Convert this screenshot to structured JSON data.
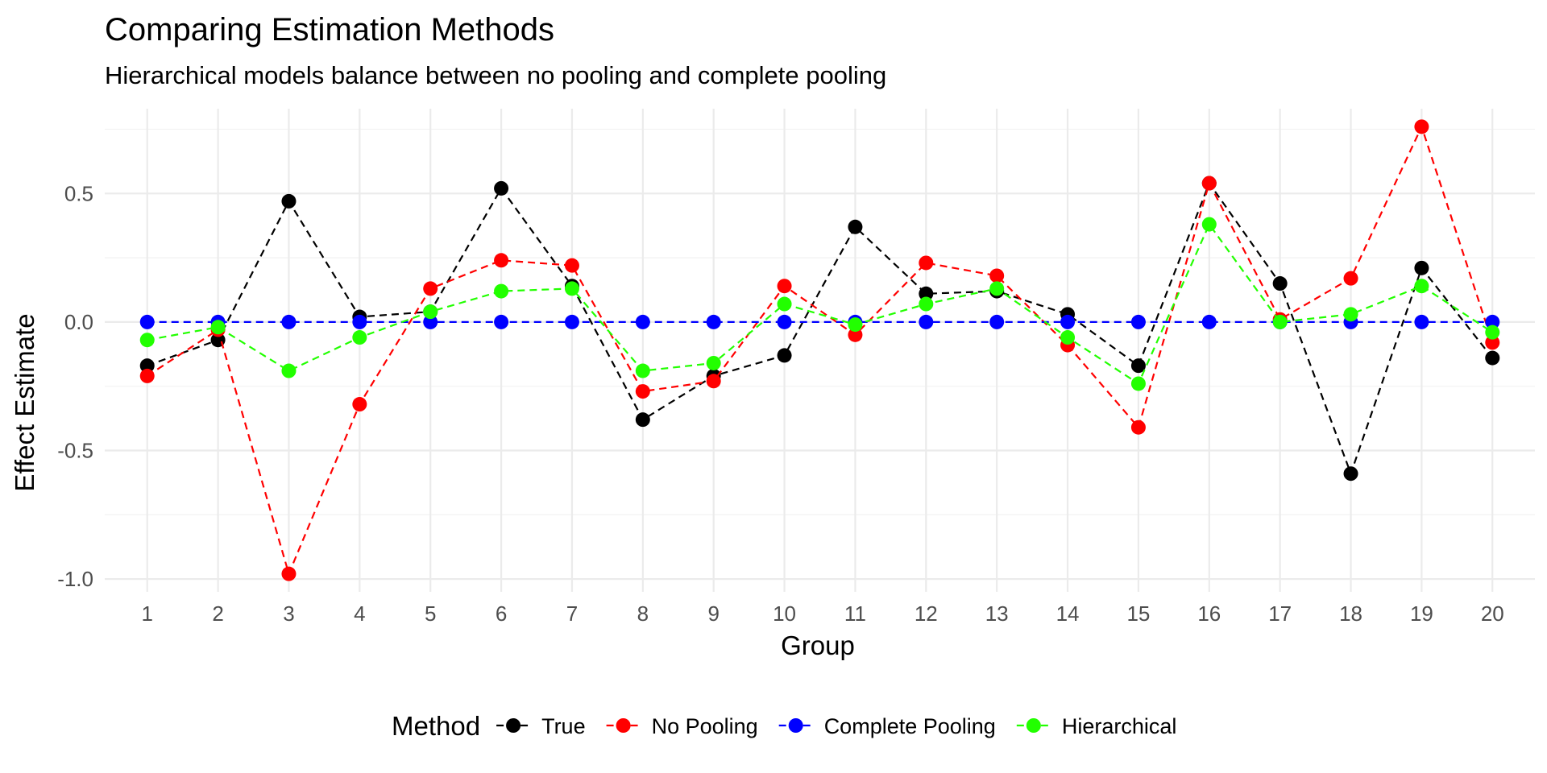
{
  "chart_data": {
    "type": "line",
    "title": "Comparing Estimation Methods",
    "subtitle": "Hierarchical models balance between no pooling and complete pooling",
    "xlabel": "Group",
    "ylabel": "Effect Estimate",
    "x": [
      1,
      2,
      3,
      4,
      5,
      6,
      7,
      8,
      9,
      10,
      11,
      12,
      13,
      14,
      15,
      16,
      17,
      18,
      19,
      20
    ],
    "x_tick_labels": [
      "1",
      "2",
      "3",
      "4",
      "5",
      "6",
      "7",
      "8",
      "9",
      "10",
      "11",
      "12",
      "13",
      "14",
      "15",
      "16",
      "17",
      "18",
      "19",
      "20"
    ],
    "y_ticks": [
      -1.0,
      -0.5,
      0.0,
      0.5
    ],
    "y_tick_labels": [
      "-1.0",
      "-0.5",
      "0.0",
      "0.5"
    ],
    "ylim": [
      -1.05,
      0.83
    ],
    "grid": true,
    "legend": {
      "title": "Method",
      "position": "bottom"
    },
    "series": [
      {
        "name": "True",
        "color": "#000000",
        "values": [
          -0.17,
          -0.07,
          0.47,
          0.02,
          0.04,
          0.52,
          0.14,
          -0.38,
          -0.21,
          -0.13,
          0.37,
          0.11,
          0.12,
          0.03,
          -0.17,
          0.54,
          0.15,
          -0.59,
          0.21,
          -0.14
        ]
      },
      {
        "name": "No Pooling",
        "color": "#ff0000",
        "values": [
          -0.21,
          -0.03,
          -0.98,
          -0.32,
          0.13,
          0.24,
          0.22,
          -0.27,
          -0.23,
          0.14,
          -0.05,
          0.23,
          0.18,
          -0.09,
          -0.41,
          0.54,
          0.01,
          0.17,
          0.76,
          -0.08
        ]
      },
      {
        "name": "Complete Pooling",
        "color": "#0000ff",
        "values": [
          0.0,
          0.0,
          0.0,
          0.0,
          0.0,
          0.0,
          0.0,
          0.0,
          0.0,
          0.0,
          0.0,
          0.0,
          0.0,
          0.0,
          0.0,
          0.0,
          0.0,
          0.0,
          0.0,
          0.0
        ]
      },
      {
        "name": "Hierarchical",
        "color": "#22ff00",
        "values": [
          -0.07,
          -0.02,
          -0.19,
          -0.06,
          0.04,
          0.12,
          0.13,
          -0.19,
          -0.16,
          0.07,
          -0.01,
          0.07,
          0.13,
          -0.06,
          -0.24,
          0.38,
          0.0,
          0.03,
          0.14,
          -0.04
        ]
      }
    ]
  }
}
